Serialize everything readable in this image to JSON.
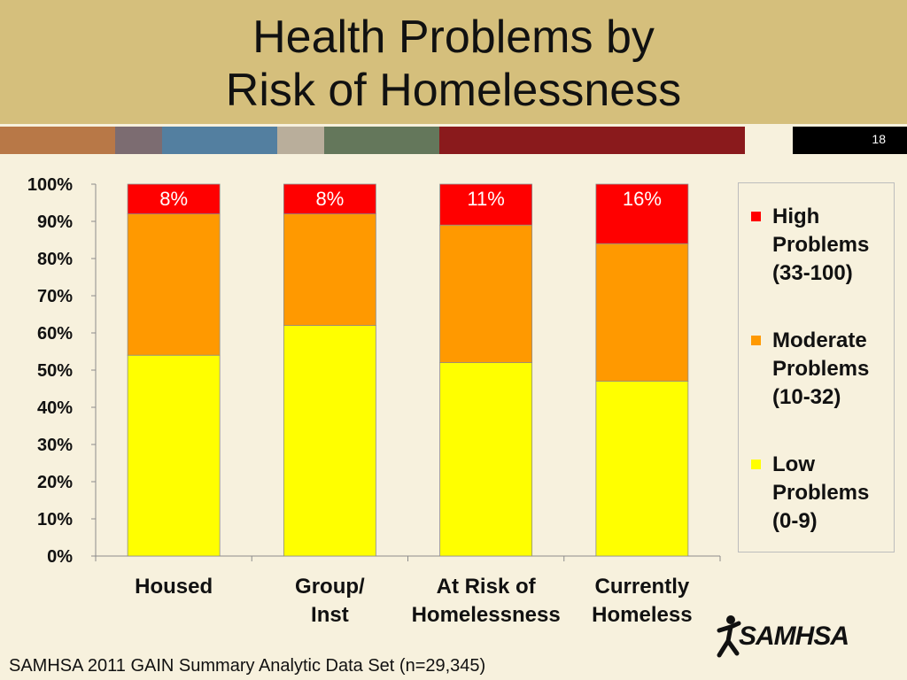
{
  "slide": {
    "title_line1": "Health Problems by",
    "title_line2": "Risk of Homelessness",
    "slide_number": "18",
    "stripe_colors": [
      "#b87847",
      "#7c6c71",
      "#537fa0",
      "#b9ae9b",
      "#64775b",
      "#8a1a1c"
    ],
    "footer": "SAMHSA 2011 GAIN Summary Analytic Data Set (n=29,345)",
    "logo_text": "SAMHSA"
  },
  "chart_data": {
    "type": "bar",
    "stacked": true,
    "categories": [
      [
        "Housed"
      ],
      [
        "Group/",
        "Inst"
      ],
      [
        "At Risk of",
        "Homelessness"
      ],
      [
        "Currently",
        "Homeless"
      ]
    ],
    "series": [
      {
        "name": "Low Problems (0-9)",
        "legend_lines": [
          "Low",
          "Problems",
          "(0-9)"
        ],
        "color": "#ffff00",
        "values": [
          54,
          62,
          52,
          47
        ]
      },
      {
        "name": "Moderate Problems (10-32)",
        "legend_lines": [
          "Moderate",
          "Problems",
          "(10-32)"
        ],
        "color": "#ff9900",
        "values": [
          38,
          30,
          37,
          37
        ]
      },
      {
        "name": "High Problems (33-100)",
        "legend_lines": [
          "High",
          "Problems",
          "(33-100)"
        ],
        "color": "#ff0000",
        "values": [
          8,
          8,
          11,
          16
        ]
      }
    ],
    "data_labels": [
      "8%",
      "8%",
      "11%",
      "16%"
    ],
    "yticks": [
      "0%",
      "10%",
      "20%",
      "30%",
      "40%",
      "50%",
      "60%",
      "70%",
      "80%",
      "90%",
      "100%"
    ],
    "ylim": [
      0,
      100
    ],
    "legend_position": "right",
    "grid": false
  }
}
